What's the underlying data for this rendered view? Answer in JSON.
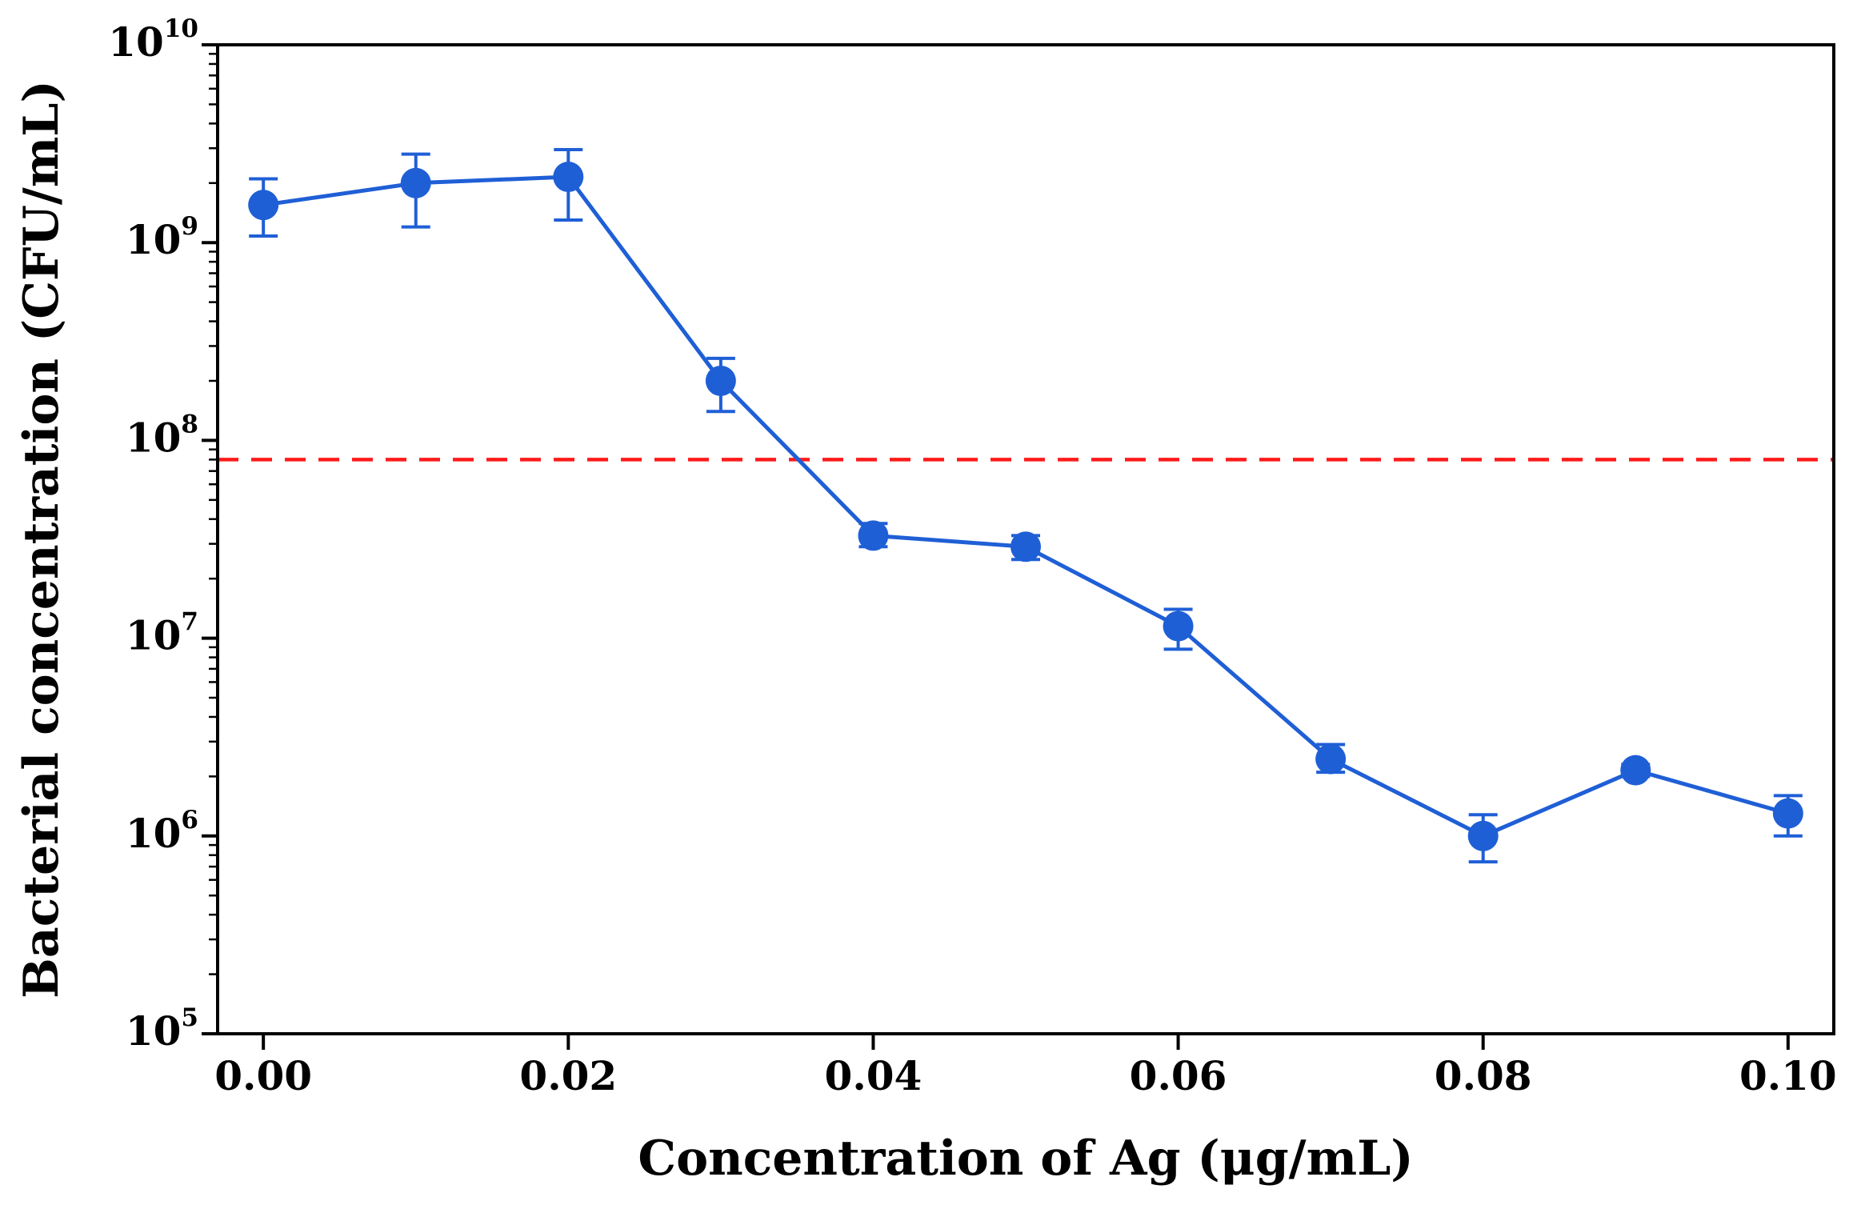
{
  "chart_data": {
    "type": "line",
    "title": "",
    "xlabel": "Concentration of Ag (μg/mL)",
    "ylabel": "Bacterial concentration (CFU/mL)",
    "xlim": [
      -0.003,
      0.103
    ],
    "ylim": [
      100000,
      10000000000
    ],
    "yscale": "log",
    "x_ticks": [
      0.0,
      0.02,
      0.04,
      0.06,
      0.08,
      0.1
    ],
    "x_tick_labels": [
      "0.00",
      "0.02",
      "0.04",
      "0.06",
      "0.08",
      "0.10"
    ],
    "y_ticks": [
      {
        "value": 100000,
        "base": "10",
        "exp": "5"
      },
      {
        "value": 1000000,
        "base": "10",
        "exp": "6"
      },
      {
        "value": 10000000,
        "base": "10",
        "exp": "7"
      },
      {
        "value": 100000000,
        "base": "10",
        "exp": "8"
      },
      {
        "value": 1000000000,
        "base": "10",
        "exp": "9"
      },
      {
        "value": 10000000000,
        "base": "10",
        "exp": "10"
      }
    ],
    "grid": false,
    "series": [
      {
        "name": "Bacterial concentration",
        "color": "#1f5fd6",
        "points": [
          {
            "x": 0.0,
            "y": 1550000000,
            "lo": 1080000000,
            "hi": 2100000000
          },
          {
            "x": 0.01,
            "y": 2000000000,
            "lo": 1200000000,
            "hi": 2800000000
          },
          {
            "x": 0.02,
            "y": 2150000000,
            "lo": 1300000000,
            "hi": 2950000000
          },
          {
            "x": 0.03,
            "y": 200000000,
            "lo": 140000000,
            "hi": 260000000
          },
          {
            "x": 0.04,
            "y": 33000000,
            "lo": 29000000,
            "hi": 38000000
          },
          {
            "x": 0.05,
            "y": 29000000,
            "lo": 25000000,
            "hi": 33000000
          },
          {
            "x": 0.06,
            "y": 11500000,
            "lo": 8800000,
            "hi": 14000000
          },
          {
            "x": 0.07,
            "y": 2450000,
            "lo": 2100000,
            "hi": 2900000
          },
          {
            "x": 0.08,
            "y": 1000000,
            "lo": 740000,
            "hi": 1280000
          },
          {
            "x": 0.09,
            "y": 2150000,
            "lo": 2000000,
            "hi": 2300000
          },
          {
            "x": 0.1,
            "y": 1300000,
            "lo": 1000000,
            "hi": 1600000
          }
        ]
      }
    ],
    "reference_line": {
      "y": 80000000,
      "color": "#ff1a1a",
      "style": "dashed"
    }
  }
}
